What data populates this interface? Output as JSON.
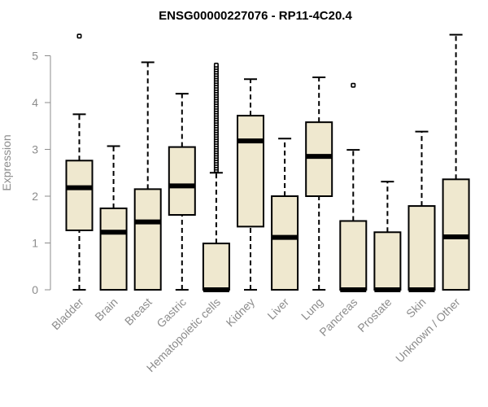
{
  "chart_data": {
    "type": "boxplot",
    "title": "ENSG00000227076 - RP11-4C20.4",
    "xlabel": "",
    "ylabel": "Expression",
    "ylim": [
      0,
      5.5
    ],
    "yticks": [
      0,
      1,
      2,
      3,
      4,
      5
    ],
    "grid": false,
    "box_fill": "#efe8cf",
    "box_stroke": "#000000",
    "axis_color": "#8c8c8c",
    "categories": [
      "Bladder",
      "Brain",
      "Breast",
      "Gastric",
      "Hematopoietic cells",
      "Kidney",
      "Liver",
      "Lung",
      "Pancreas",
      "Prostate",
      "Skin",
      "Unknown / Other"
    ],
    "boxes": [
      {
        "category": "Bladder",
        "whisker_low": 0,
        "q1": 1.27,
        "median": 2.18,
        "q3": 2.76,
        "whisker_high": 3.75,
        "outliers": [
          5.42
        ]
      },
      {
        "category": "Brain",
        "whisker_low": 0,
        "q1": 0,
        "median": 1.23,
        "q3": 1.74,
        "whisker_high": 3.07,
        "outliers": []
      },
      {
        "category": "Breast",
        "whisker_low": 0,
        "q1": 0,
        "median": 1.45,
        "q3": 2.15,
        "whisker_high": 4.86,
        "outliers": []
      },
      {
        "category": "Gastric",
        "whisker_low": 0,
        "q1": 1.6,
        "median": 2.22,
        "q3": 3.05,
        "whisker_high": 4.19,
        "outliers": []
      },
      {
        "category": "Hematopoietic cells",
        "whisker_low": 0,
        "q1": 0,
        "median": 0,
        "q3": 0.99,
        "whisker_high": 2.5,
        "outliers": [
          2.55,
          2.6,
          2.65,
          2.7,
          2.75,
          2.8,
          2.85,
          2.9,
          2.95,
          3.0,
          3.05,
          3.1,
          3.15,
          3.2,
          3.25,
          3.3,
          3.35,
          3.4,
          3.45,
          3.5,
          3.55,
          3.6,
          3.65,
          3.7,
          3.75,
          3.8,
          3.85,
          3.9,
          3.95,
          4.0,
          4.05,
          4.1,
          4.15,
          4.2,
          4.25,
          4.3,
          4.35,
          4.4,
          4.45,
          4.5,
          4.55,
          4.6,
          4.65,
          4.7,
          4.75,
          4.8
        ]
      },
      {
        "category": "Kidney",
        "whisker_low": 0,
        "q1": 1.35,
        "median": 3.18,
        "q3": 3.72,
        "whisker_high": 4.5,
        "outliers": []
      },
      {
        "category": "Liver",
        "whisker_low": 0,
        "q1": 0,
        "median": 1.12,
        "q3": 2.0,
        "whisker_high": 3.23,
        "outliers": []
      },
      {
        "category": "Lung",
        "whisker_low": 0,
        "q1": 2.0,
        "median": 2.85,
        "q3": 3.58,
        "whisker_high": 4.54,
        "outliers": []
      },
      {
        "category": "Pancreas",
        "whisker_low": 0,
        "q1": 0,
        "median": 0,
        "q3": 1.47,
        "whisker_high": 2.99,
        "outliers": [
          4.37
        ]
      },
      {
        "category": "Prostate",
        "whisker_low": 0,
        "q1": 0,
        "median": 0,
        "q3": 1.23,
        "whisker_high": 2.31,
        "outliers": []
      },
      {
        "category": "Skin",
        "whisker_low": 0,
        "q1": 0,
        "median": 0,
        "q3": 1.79,
        "whisker_high": 3.38,
        "outliers": []
      },
      {
        "category": "Unknown / Other",
        "whisker_low": 0,
        "q1": 0,
        "median": 1.13,
        "q3": 2.36,
        "whisker_high": 5.45,
        "outliers": []
      }
    ]
  }
}
